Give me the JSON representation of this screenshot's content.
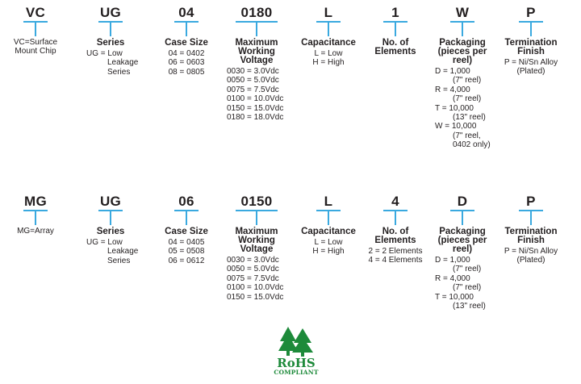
{
  "row1": {
    "columns": [
      {
        "code": "VC",
        "title": "",
        "lines": [
          "VC=Surface",
          "Mount Chip"
        ]
      },
      {
        "code": "UG",
        "title": "Series",
        "lines": [
          "UG = Low",
          "Leakage",
          "Series"
        ]
      },
      {
        "code": "04",
        "title": "Case Size",
        "lines": [
          "04 = 0402",
          "06 = 0603",
          "08 = 0805"
        ]
      },
      {
        "code": "0180",
        "title": "Maximum Working Voltage",
        "lines": [
          "0030 = 3.0Vdc",
          "0050 = 5.0Vdc",
          "0075 = 7.5Vdc",
          "0100 = 10.0Vdc",
          "0150 = 15.0Vdc",
          "0180 = 18.0Vdc"
        ]
      },
      {
        "code": "L",
        "title": "Capacitance",
        "lines": [
          "L = Low",
          "H = High"
        ]
      },
      {
        "code": "1",
        "title": "No. of Elements",
        "lines": []
      },
      {
        "code": "W",
        "title": "Packaging (pieces per reel)",
        "lines": [
          "D = 1,000",
          "(7\" reel)",
          "R = 4,000",
          "(7\" reel)",
          "T = 10,000",
          "(13\" reel)",
          "W = 10,000",
          "(7\" reel,",
          "0402 only)"
        ]
      },
      {
        "code": "P",
        "title": "Termination Finish",
        "lines": [
          "P = Ni/Sn Alloy",
          "(Plated)"
        ]
      }
    ]
  },
  "row2": {
    "columns": [
      {
        "code": "MG",
        "title": "",
        "lines": [
          "MG=Array"
        ]
      },
      {
        "code": "UG",
        "title": "Series",
        "lines": [
          "UG = Low",
          "Leakage",
          "Series"
        ]
      },
      {
        "code": "06",
        "title": "Case Size",
        "lines": [
          "04 = 0405",
          "05 = 0508",
          "06 = 0612"
        ]
      },
      {
        "code": "0150",
        "title": "Maximum Working Voltage",
        "lines": [
          "0030 = 3.0Vdc",
          "0050 = 5.0Vdc",
          "0075 = 7.5Vdc",
          "0100 = 10.0Vdc",
          "0150 = 15.0Vdc"
        ]
      },
      {
        "code": "L",
        "title": "Capacitance",
        "lines": [
          "L = Low",
          "H = High"
        ]
      },
      {
        "code": "4",
        "title": "No. of Elements",
        "lines": [
          "2 = 2 Elements",
          "4 = 4 Elements"
        ]
      },
      {
        "code": "D",
        "title": "Packaging (pieces per reel)",
        "lines": [
          "D = 1,000",
          "(7\" reel)",
          "R = 4,000",
          "(7\" reel)",
          "T = 10,000",
          "(13\" reel)"
        ]
      },
      {
        "code": "P",
        "title": "Termination Finish",
        "lines": [
          "P = Ni/Sn Alloy",
          "(Plated)"
        ]
      }
    ]
  },
  "rohs": {
    "label": "RoHS",
    "sublabel": "COMPLIANT"
  },
  "colors": {
    "accent": "#3aa9df",
    "rohs_green": "#1d8a3a"
  }
}
